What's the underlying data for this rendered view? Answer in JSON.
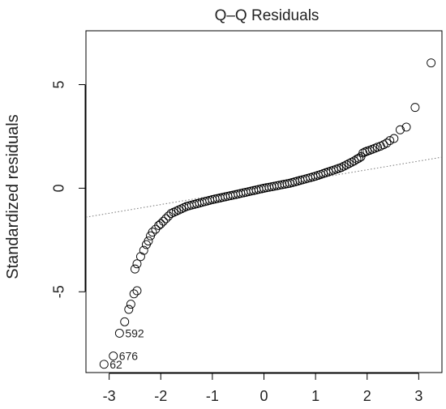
{
  "chart_data": {
    "type": "scatter",
    "title": "Q–Q Residuals",
    "xlabel": "",
    "ylabel": "Standardized residuals",
    "xlim": [
      -3.45,
      3.45
    ],
    "ylim": [
      -8.9,
      7.6
    ],
    "xticks": [
      -3,
      -2,
      -1,
      0,
      1,
      2,
      3
    ],
    "xtick_labels": [
      "-3",
      "-2",
      "-1",
      "0",
      "1",
      "2",
      "3"
    ],
    "yticks": [
      -5,
      0,
      5
    ],
    "ytick_labels": [
      "-5",
      "0",
      "5"
    ],
    "reference_line": {
      "slope": 0.42,
      "intercept": 0.05
    },
    "grid": false,
    "points": [
      {
        "x": 3.24,
        "y": 6.05
      },
      {
        "x": 2.93,
        "y": 3.9
      },
      {
        "x": 2.76,
        "y": 2.95
      },
      {
        "x": 2.64,
        "y": 2.82
      },
      {
        "x": 2.52,
        "y": 2.4
      },
      {
        "x": 2.44,
        "y": 2.3
      },
      {
        "x": 2.38,
        "y": 2.18
      },
      {
        "x": 2.32,
        "y": 2.1
      },
      {
        "x": 2.26,
        "y": 2.03
      },
      {
        "x": 2.2,
        "y": 1.98
      },
      {
        "x": 2.15,
        "y": 1.93
      },
      {
        "x": 2.1,
        "y": 1.88
      },
      {
        "x": 2.05,
        "y": 1.83
      },
      {
        "x": 2.0,
        "y": 1.79
      },
      {
        "x": 1.96,
        "y": 1.75
      },
      {
        "x": 1.92,
        "y": 1.7
      },
      {
        "x": 1.88,
        "y": 1.52
      },
      {
        "x": 1.84,
        "y": 1.45
      },
      {
        "x": 1.8,
        "y": 1.4
      },
      {
        "x": -2.04,
        "y": -1.8
      },
      {
        "x": -2.1,
        "y": -1.98
      },
      {
        "x": -2.16,
        "y": -2.12
      },
      {
        "x": -2.2,
        "y": -2.3
      },
      {
        "x": -2.24,
        "y": -2.55
      },
      {
        "x": -2.28,
        "y": -2.72
      },
      {
        "x": -2.33,
        "y": -3.0
      },
      {
        "x": -2.39,
        "y": -3.3
      },
      {
        "x": -2.46,
        "y": -3.65
      },
      {
        "x": -2.5,
        "y": -3.9
      },
      {
        "x": -2.46,
        "y": -4.95
      },
      {
        "x": -2.52,
        "y": -5.1
      },
      {
        "x": -2.58,
        "y": -5.6
      },
      {
        "x": -2.62,
        "y": -5.85
      },
      {
        "x": -2.7,
        "y": -6.45
      },
      {
        "x": -2.8,
        "y": -7.0
      },
      {
        "x": -2.92,
        "y": -8.1
      },
      {
        "x": -3.1,
        "y": -8.5
      }
    ],
    "labeled_points": [
      {
        "label": "592",
        "x": -2.8,
        "y": -7.0
      },
      {
        "label": "676",
        "x": -2.92,
        "y": -8.1
      },
      {
        "label": "62",
        "x": -3.1,
        "y": -8.5
      }
    ]
  }
}
